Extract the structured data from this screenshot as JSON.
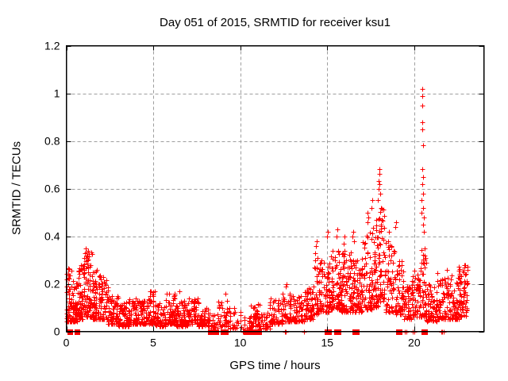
{
  "chart_data": {
    "type": "scatter",
    "title": "Day 051 of 2015, SRMTID for receiver ksu1",
    "xlabel": "GPS time / hours",
    "ylabel": "SRMTID / TECUs",
    "xlim": [
      0,
      24
    ],
    "ylim": [
      0,
      1.2
    ],
    "xticks": [
      0,
      5,
      10,
      15,
      20
    ],
    "xtick_labels": [
      "0",
      "5",
      "10",
      "15",
      "20"
    ],
    "yticks": [
      0,
      0.2,
      0.4,
      0.6,
      0.8,
      1,
      1.2
    ],
    "ytick_labels": [
      "0",
      "0.2",
      "0.4",
      "0.6",
      "0.8",
      "1",
      "1.2"
    ],
    "grid": true,
    "legend": "none",
    "marker": "plus",
    "zero_marker": "filled-square",
    "colors": {
      "marker": "#ff0000",
      "grid": "#9e9e9e",
      "border": "#000000",
      "text": "#000000",
      "background": "#ffffff"
    },
    "seed": 51,
    "density_bins": [
      [
        0.0,
        0.3,
        55,
        0.04,
        0.27,
        1.8
      ],
      [
        0.3,
        0.7,
        65,
        0.04,
        0.22,
        1.8
      ],
      [
        0.7,
        1.0,
        55,
        0.05,
        0.28,
        1.8
      ],
      [
        1.0,
        1.5,
        85,
        0.06,
        0.34,
        1.8
      ],
      [
        1.5,
        2.0,
        75,
        0.05,
        0.26,
        1.8
      ],
      [
        2.0,
        2.4,
        45,
        0.05,
        0.22,
        1.8
      ],
      [
        2.4,
        3.0,
        70,
        0.03,
        0.15,
        1.8
      ],
      [
        3.0,
        3.6,
        65,
        0.02,
        0.13,
        1.8
      ],
      [
        3.6,
        4.2,
        60,
        0.03,
        0.14,
        1.8
      ],
      [
        4.2,
        4.7,
        55,
        0.03,
        0.13,
        1.8
      ],
      [
        4.7,
        5.1,
        50,
        0.03,
        0.17,
        1.9
      ],
      [
        5.1,
        5.7,
        60,
        0.02,
        0.12,
        1.8
      ],
      [
        5.7,
        6.3,
        60,
        0.03,
        0.16,
        1.9
      ],
      [
        6.3,
        7.0,
        70,
        0.02,
        0.14,
        1.8
      ],
      [
        7.0,
        7.6,
        55,
        0.03,
        0.14,
        1.8
      ],
      [
        7.6,
        8.2,
        50,
        0.02,
        0.1,
        1.8
      ],
      [
        8.2,
        8.7,
        22,
        0.01,
        0.08,
        1.6
      ],
      [
        8.7,
        9.3,
        45,
        0.02,
        0.14,
        1.9
      ],
      [
        9.3,
        10.2,
        30,
        0.01,
        0.1,
        1.9
      ],
      [
        10.2,
        10.6,
        14,
        0.01,
        0.06,
        1.5
      ],
      [
        10.6,
        11.1,
        45,
        0.02,
        0.12,
        1.7
      ],
      [
        11.1,
        11.7,
        30,
        0.01,
        0.08,
        1.6
      ],
      [
        11.7,
        12.4,
        60,
        0.03,
        0.14,
        1.7
      ],
      [
        12.4,
        13.1,
        60,
        0.04,
        0.17,
        1.8
      ],
      [
        13.1,
        13.7,
        55,
        0.04,
        0.15,
        1.8
      ],
      [
        13.7,
        14.2,
        60,
        0.05,
        0.19,
        1.7
      ],
      [
        14.2,
        14.6,
        45,
        0.07,
        0.3,
        1.6
      ],
      [
        14.6,
        15.2,
        70,
        0.08,
        0.3,
        1.7
      ],
      [
        15.2,
        15.8,
        80,
        0.09,
        0.34,
        1.7
      ],
      [
        15.8,
        16.4,
        80,
        0.08,
        0.34,
        1.7
      ],
      [
        16.4,
        17.0,
        80,
        0.08,
        0.3,
        1.6
      ],
      [
        17.0,
        17.6,
        70,
        0.09,
        0.42,
        1.7
      ],
      [
        17.6,
        18.0,
        60,
        0.1,
        0.5,
        1.6
      ],
      [
        18.0,
        18.3,
        45,
        0.12,
        0.52,
        1.5
      ],
      [
        18.3,
        18.9,
        60,
        0.08,
        0.38,
        1.7
      ],
      [
        18.9,
        19.35,
        55,
        0.07,
        0.3,
        1.7
      ],
      [
        19.35,
        19.85,
        50,
        0.05,
        0.2,
        1.7
      ],
      [
        19.85,
        20.35,
        55,
        0.06,
        0.26,
        1.7
      ],
      [
        20.35,
        20.7,
        50,
        0.06,
        0.35,
        2.0
      ],
      [
        20.7,
        21.3,
        60,
        0.04,
        0.2,
        1.7
      ],
      [
        21.3,
        21.95,
        65,
        0.05,
        0.26,
        1.8
      ],
      [
        21.95,
        22.55,
        65,
        0.05,
        0.24,
        1.8
      ],
      [
        22.55,
        23.1,
        70,
        0.06,
        0.28,
        1.6
      ]
    ],
    "spike_points": [
      [
        1.1,
        0.31
      ],
      [
        1.12,
        0.35
      ],
      [
        1.2,
        0.3
      ],
      [
        2.1,
        0.23
      ],
      [
        4.8,
        0.17
      ],
      [
        5.9,
        0.16
      ],
      [
        6.5,
        0.17
      ],
      [
        9.15,
        0.16
      ],
      [
        12.6,
        0.19
      ],
      [
        12.65,
        0.2
      ],
      [
        14.3,
        0.3
      ],
      [
        14.32,
        0.33
      ],
      [
        14.35,
        0.36
      ],
      [
        14.38,
        0.38
      ],
      [
        14.42,
        0.31
      ],
      [
        15.0,
        0.4
      ],
      [
        15.05,
        0.42
      ],
      [
        15.55,
        0.4
      ],
      [
        15.6,
        0.43
      ],
      [
        15.95,
        0.37
      ],
      [
        16.0,
        0.4
      ],
      [
        16.45,
        0.4
      ],
      [
        16.5,
        0.42
      ],
      [
        16.52,
        0.38
      ],
      [
        17.3,
        0.46
      ],
      [
        17.32,
        0.5
      ],
      [
        17.36,
        0.48
      ],
      [
        17.55,
        0.52
      ],
      [
        17.6,
        0.55
      ],
      [
        17.9,
        0.55
      ],
      [
        17.94,
        0.6
      ],
      [
        17.96,
        0.63
      ],
      [
        17.98,
        0.66
      ],
      [
        18.0,
        0.68
      ],
      [
        18.02,
        0.62
      ],
      [
        18.05,
        0.58
      ],
      [
        18.1,
        0.52
      ],
      [
        18.15,
        0.47
      ],
      [
        18.55,
        0.42
      ],
      [
        18.9,
        0.44
      ],
      [
        18.95,
        0.46
      ],
      [
        19.3,
        0.28
      ],
      [
        20.44,
        0.5
      ],
      [
        20.44,
        0.55
      ],
      [
        20.45,
        0.62
      ],
      [
        20.45,
        0.68
      ],
      [
        20.46,
        0.85
      ],
      [
        20.46,
        0.88
      ],
      [
        20.47,
        0.95
      ],
      [
        20.47,
        0.99
      ],
      [
        20.47,
        1.02
      ],
      [
        20.5,
        0.45
      ],
      [
        20.5,
        0.52
      ],
      [
        20.52,
        0.58
      ],
      [
        20.52,
        0.65
      ],
      [
        20.53,
        0.78
      ],
      [
        20.55,
        0.48
      ],
      [
        20.56,
        0.42
      ],
      [
        20.58,
        0.35
      ],
      [
        20.6,
        0.32
      ],
      [
        21.9,
        0.26
      ],
      [
        22.9,
        0.27
      ],
      [
        22.95,
        0.28
      ]
    ],
    "zero_square_x": [
      0.22,
      0.62,
      8.28,
      8.42,
      8.55,
      8.62,
      9.0,
      9.15,
      10.32,
      10.45,
      10.55,
      10.8,
      10.95,
      11.05,
      15.0,
      15.08,
      15.55,
      15.62,
      16.6,
      16.68,
      19.08,
      19.15,
      20.55,
      20.62
    ],
    "zero_plus_x": [
      9.3,
      10.15,
      12.55,
      12.62,
      13.65,
      19.48,
      19.55,
      19.92,
      20.0,
      21.55,
      21.62,
      21.7
    ]
  }
}
